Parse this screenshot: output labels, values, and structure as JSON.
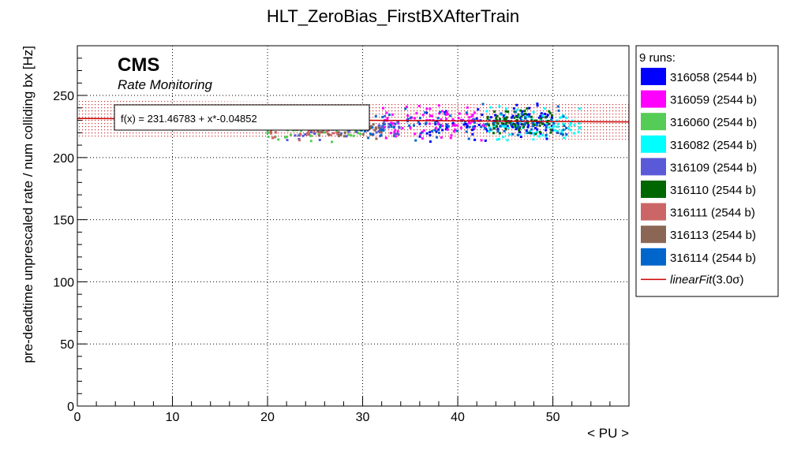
{
  "chart_data": {
    "type": "scatter",
    "title": "HLT_ZeroBias_FirstBXAfterTrain",
    "xlabel": "< PU >",
    "ylabel": "pre-deadtime unprescaled rate / num colliding bx [Hz]",
    "xlim": [
      0,
      58
    ],
    "ylim": [
      0,
      290
    ],
    "x_ticks": [
      0,
      10,
      20,
      30,
      40,
      50
    ],
    "y_ticks": [
      0,
      50,
      100,
      150,
      200,
      250
    ],
    "grid": true,
    "branding": {
      "experiment": "CMS",
      "subtitle": "Rate Monitoring"
    },
    "fit": {
      "label": "f(x) = 231.46783 + x*-0.04852",
      "intercept": 231.46783,
      "slope": -0.04852,
      "x_range": [
        0,
        58
      ],
      "band_half_width": 14.5,
      "line_color": "#cc0000",
      "band_color": "#cc3333"
    },
    "legend": {
      "header": "9 runs:",
      "position": "right",
      "fit_entry_name": "linearFit",
      "fit_entry_sigma": "(3.0σ)"
    },
    "series": [
      {
        "name": "316058 (2544 b)",
        "color": "#0000ff",
        "pu_range": [
          36,
          50
        ],
        "rate_center": 228,
        "rate_spread": 9,
        "count": 110
      },
      {
        "name": "316059 (2544 b)",
        "color": "#ff00ff",
        "pu_range": [
          32,
          43
        ],
        "rate_center": 228,
        "rate_spread": 9,
        "count": 90
      },
      {
        "name": "316060 (2544 b)",
        "color": "#55cc55",
        "pu_range": [
          20,
          30
        ],
        "rate_center": 224,
        "rate_spread": 7,
        "count": 80
      },
      {
        "name": "316082 (2544 b)",
        "color": "#00ffff",
        "pu_range": [
          43,
          53
        ],
        "rate_center": 226,
        "rate_spread": 9,
        "count": 90
      },
      {
        "name": "316109 (2544 b)",
        "color": "#5a5ad8",
        "pu_range": [
          22,
          34
        ],
        "rate_center": 224,
        "rate_spread": 8,
        "count": 90
      },
      {
        "name": "316110 (2544 b)",
        "color": "#006600",
        "pu_range": [
          43,
          50
        ],
        "rate_center": 229,
        "rate_spread": 7,
        "count": 80
      },
      {
        "name": "316111 (2544 b)",
        "color": "#cc6666",
        "pu_range": [
          20,
          28
        ],
        "rate_center": 222,
        "rate_spread": 6,
        "count": 40
      },
      {
        "name": "316113 (2544 b)",
        "color": "#8b6655",
        "pu_range": [
          24,
          32
        ],
        "rate_center": 222,
        "rate_spread": 6,
        "count": 40
      },
      {
        "name": "316114 (2544 b)",
        "color": "#0066cc",
        "pu_range": [
          28,
          52
        ],
        "rate_center": 227,
        "rate_spread": 9,
        "count": 110
      }
    ]
  }
}
